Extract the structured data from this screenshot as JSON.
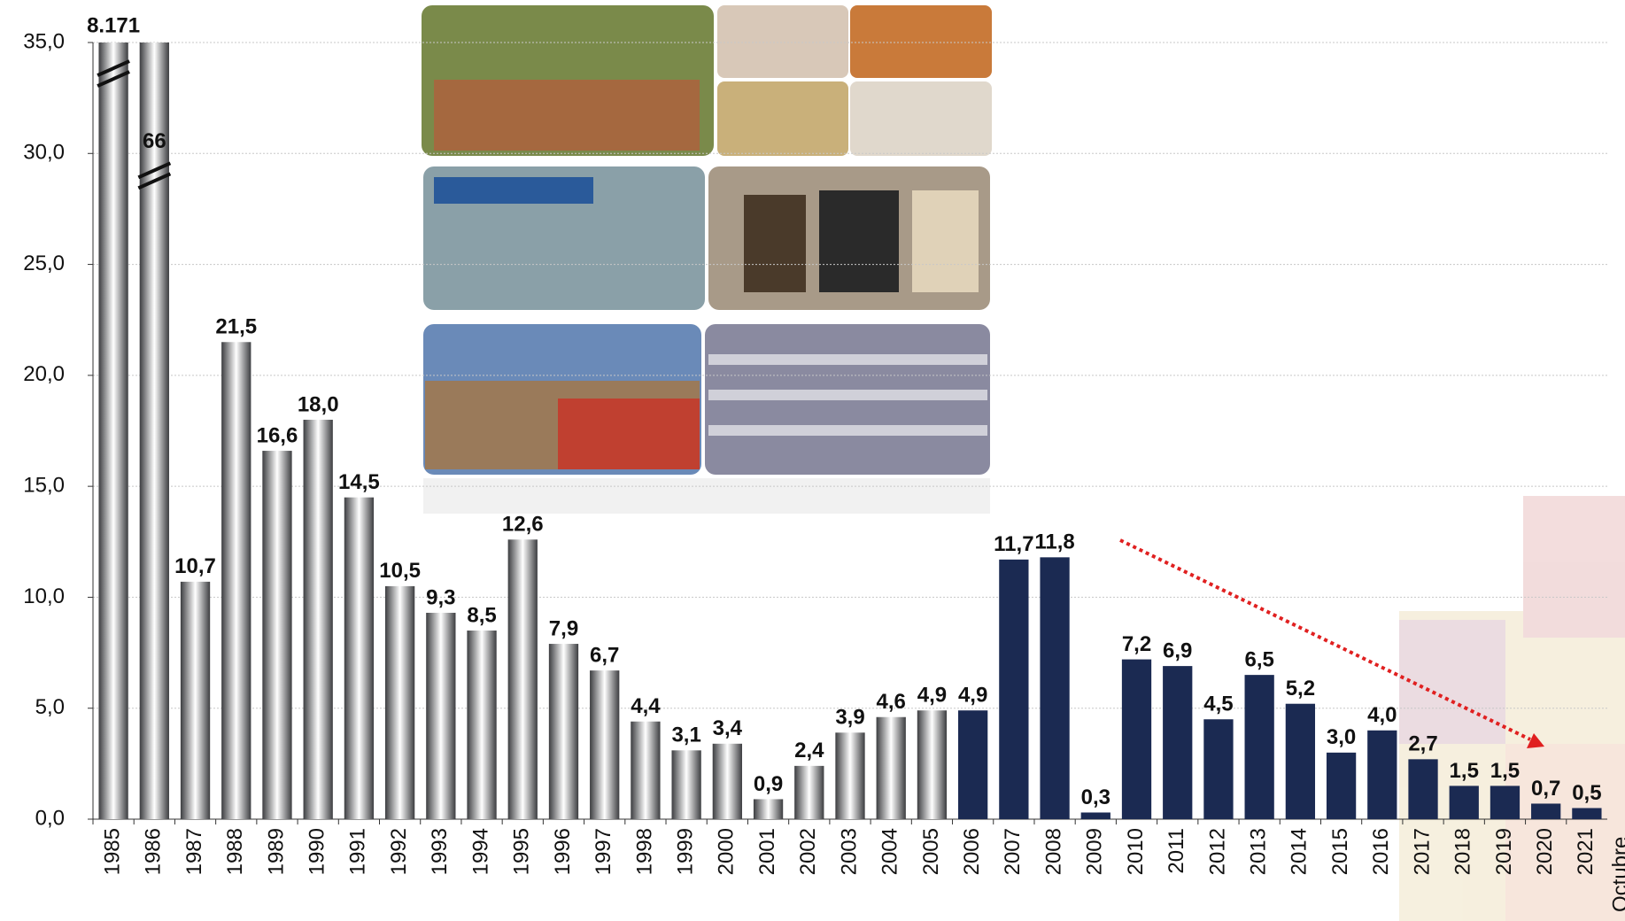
{
  "chart_data": {
    "type": "bar",
    "categories": [
      "1985",
      "1986",
      "1987",
      "1988",
      "1989",
      "1990",
      "1991",
      "1992",
      "1993",
      "1994",
      "1995",
      "1996",
      "1997",
      "1998",
      "1999",
      "2000",
      "2001",
      "2002",
      "2003",
      "2004",
      "2005",
      "2006",
      "2007",
      "2008",
      "2009",
      "2010",
      "2011",
      "2012",
      "2013",
      "2014",
      "2015",
      "2016",
      "2017",
      "2018",
      "2019",
      "2020",
      "2021"
    ],
    "values": [
      8171,
      66,
      10.7,
      21.5,
      16.6,
      18.0,
      14.5,
      10.5,
      9.3,
      8.5,
      12.6,
      7.9,
      6.7,
      4.4,
      3.1,
      3.4,
      0.9,
      2.4,
      3.9,
      4.6,
      4.9,
      4.9,
      11.7,
      11.8,
      0.3,
      7.2,
      6.9,
      4.5,
      6.5,
      5.2,
      3.0,
      4.0,
      2.7,
      1.5,
      1.5,
      0.7,
      0.5
    ],
    "value_labels": [
      "8.171",
      "66",
      "10,7",
      "21,5",
      "16,6",
      "18,0",
      "14,5",
      "10,5",
      "9,3",
      "8,5",
      "12,6",
      "7,9",
      "6,7",
      "4,4",
      "3,1",
      "3,4",
      "0,9",
      "2,4",
      "3,9",
      "4,6",
      "4,9",
      "4,9",
      "11,7",
      "11,8",
      "0,3",
      "7,2",
      "6,9",
      "4,5",
      "6,5",
      "5,2",
      "3,0",
      "4,0",
      "2,7",
      "1,5",
      "1,5",
      "0,7",
      "0,5"
    ],
    "colors": [
      "#c8ccd6",
      "#c8ccd6",
      "#c8ccd6",
      "#c8ccd6",
      "#c8ccd6",
      "#c8ccd6",
      "#c8ccd6",
      "#c8ccd6",
      "#c8ccd6",
      "#c8ccd6",
      "#c8ccd6",
      "#c8ccd6",
      "#c8ccd6",
      "#c8ccd6",
      "#c8ccd6",
      "#c8ccd6",
      "#c8ccd6",
      "#c8ccd6",
      "#c8ccd6",
      "#c8ccd6",
      "#c8ccd6",
      "#1b2a52",
      "#1b2a52",
      "#1b2a52",
      "#1b2a52",
      "#1b2a52",
      "#1b2a52",
      "#1b2a52",
      "#1b2a52",
      "#1b2a52",
      "#1b2a52",
      "#1b2a52",
      "#1b2a52",
      "#1b2a52",
      "#1b2a52",
      "#1b2a52",
      "#1b2a52"
    ],
    "ylim": [
      0,
      35
    ],
    "yticks": [
      {
        "value": 0,
        "label": "0,0"
      },
      {
        "value": 5,
        "label": "5,0"
      },
      {
        "value": 10,
        "label": "10,0"
      },
      {
        "value": 15,
        "label": "15,0"
      },
      {
        "value": 20,
        "label": "20,0"
      },
      {
        "value": 25,
        "label": "25,0"
      },
      {
        "value": 30,
        "label": "30,0"
      },
      {
        "value": 35,
        "label": "35,0"
      }
    ],
    "grid": true,
    "annotation": "Octubre"
  }
}
